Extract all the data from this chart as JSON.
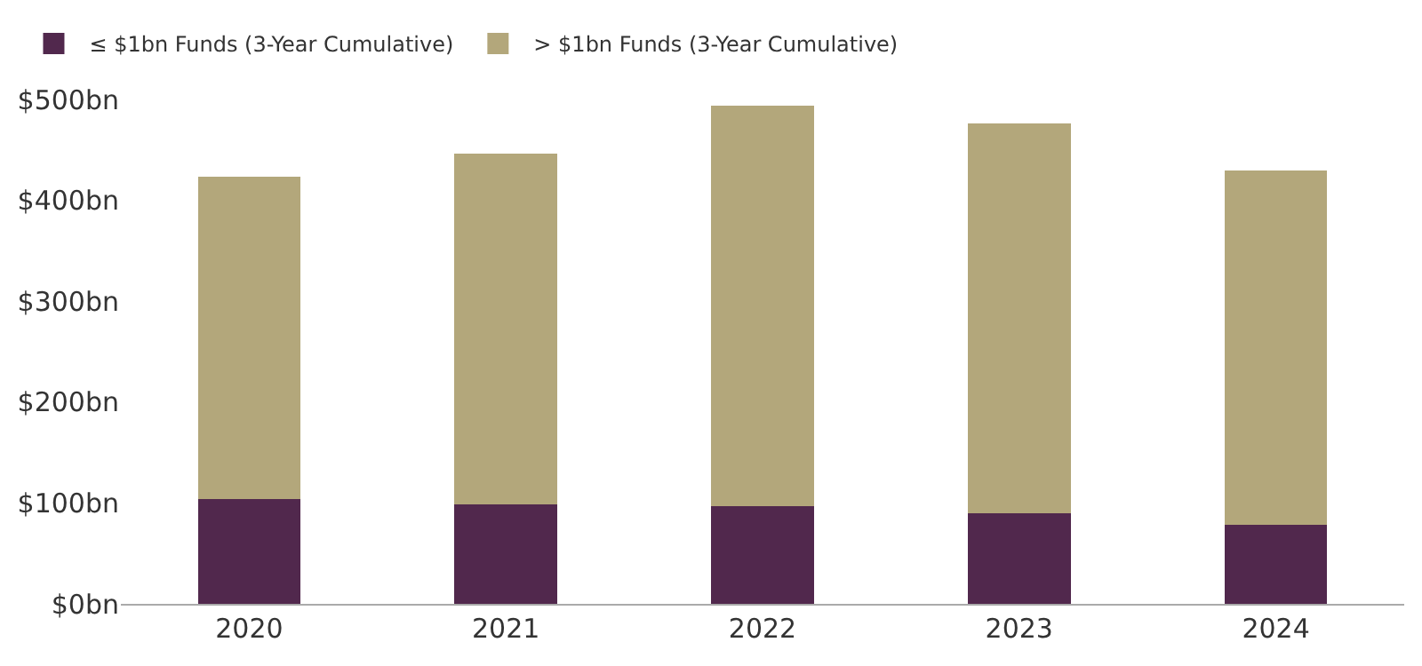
{
  "chart_data": {
    "type": "bar",
    "stacked": true,
    "categories": [
      "2020",
      "2021",
      "2022",
      "2023",
      "2024"
    ],
    "series": [
      {
        "name": "≤ $1bn Funds (3-Year Cumulative)",
        "color": "#51284d",
        "values": [
          104,
          99,
          97,
          90,
          78
        ]
      },
      {
        "name": "> $1bn Funds (3-Year Cumulative)",
        "color": "#b3a77b",
        "values": [
          319,
          347,
          397,
          386,
          352
        ]
      }
    ],
    "ylim": [
      0,
      500
    ],
    "yticks": [
      {
        "value": 0,
        "label": "$0bn"
      },
      {
        "value": 100,
        "label": "$100bn"
      },
      {
        "value": 200,
        "label": "$200bn"
      },
      {
        "value": 300,
        "label": "$300bn"
      },
      {
        "value": 400,
        "label": "$400bn"
      },
      {
        "value": 500,
        "label": "$500bn"
      }
    ],
    "legend": "top left"
  }
}
